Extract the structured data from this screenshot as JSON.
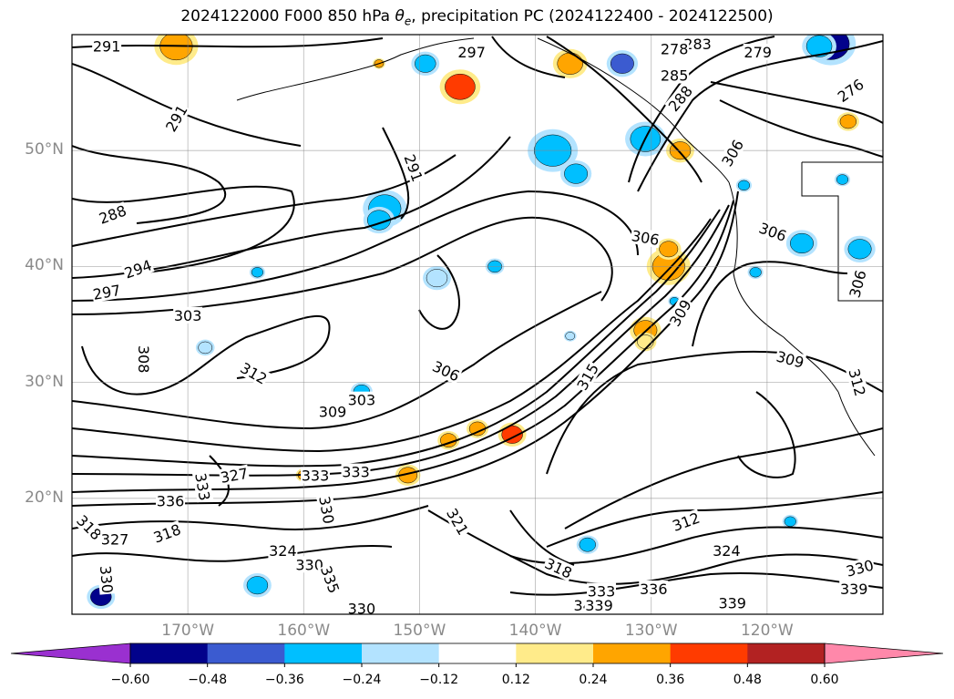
{
  "title": {
    "prefix": "2024122000 F000 850 hPa ",
    "symbol": "θ",
    "subscript": "e",
    "suffix": ", precipitation PC (2024122400 - 2024122500)"
  },
  "map": {
    "projection": "lat-lon",
    "lon_range": [
      -180,
      -110
    ],
    "lat_range": [
      10,
      60
    ],
    "lat_ticks": [
      {
        "value": 50,
        "label": "50°N"
      },
      {
        "value": 40,
        "label": "40°N"
      },
      {
        "value": 30,
        "label": "30°N"
      },
      {
        "value": 20,
        "label": "20°N"
      }
    ],
    "lon_ticks": [
      {
        "value": -170,
        "label": "170°W"
      },
      {
        "value": -160,
        "label": "160°W"
      },
      {
        "value": -150,
        "label": "150°W"
      },
      {
        "value": -140,
        "label": "140°W"
      },
      {
        "value": -130,
        "label": "130°W"
      },
      {
        "value": -120,
        "label": "120°W"
      }
    ],
    "gridlines": true,
    "contour_color": "#000000",
    "contour_labels": [
      {
        "text": "291",
        "lon": -177.0,
        "lat": 59.0,
        "angle": 0
      },
      {
        "text": "291",
        "lon": -171.0,
        "lat": 52.8,
        "angle": 60
      },
      {
        "text": "291",
        "lon": -150.5,
        "lat": 48.5,
        "angle": -70
      },
      {
        "text": "297",
        "lon": -145.5,
        "lat": 58.5,
        "angle": 0
      },
      {
        "text": "279",
        "lon": -120.8,
        "lat": 58.5,
        "angle": 0
      },
      {
        "text": "283",
        "lon": -126.0,
        "lat": 59.2,
        "angle": 0
      },
      {
        "text": "278",
        "lon": -128.0,
        "lat": 58.8,
        "angle": 0
      },
      {
        "text": "276",
        "lon": -112.8,
        "lat": 55.2,
        "angle": 35
      },
      {
        "text": "285",
        "lon": -128.0,
        "lat": 56.5,
        "angle": 0
      },
      {
        "text": "288",
        "lon": -127.5,
        "lat": 54.5,
        "angle": 50
      },
      {
        "text": "306",
        "lon": -123.0,
        "lat": 49.8,
        "angle": 60
      },
      {
        "text": "306",
        "lon": -119.5,
        "lat": 43.0,
        "angle": -20
      },
      {
        "text": "306",
        "lon": -112.2,
        "lat": 38.5,
        "angle": 75
      },
      {
        "text": "306",
        "lon": -130.5,
        "lat": 42.5,
        "angle": -10
      },
      {
        "text": "288",
        "lon": -176.5,
        "lat": 44.5,
        "angle": 20
      },
      {
        "text": "294",
        "lon": -174.3,
        "lat": 39.8,
        "angle": 20
      },
      {
        "text": "297",
        "lon": -177.0,
        "lat": 37.8,
        "angle": 10
      },
      {
        "text": "303",
        "lon": -170.0,
        "lat": 35.8,
        "angle": 0
      },
      {
        "text": "308",
        "lon": -173.8,
        "lat": 32.0,
        "angle": -90
      },
      {
        "text": "312",
        "lon": -164.3,
        "lat": 30.8,
        "angle": -30
      },
      {
        "text": "306",
        "lon": -147.7,
        "lat": 31.0,
        "angle": -25
      },
      {
        "text": "303",
        "lon": -155.0,
        "lat": 28.5,
        "angle": 0
      },
      {
        "text": "309",
        "lon": -157.5,
        "lat": 27.5,
        "angle": 0
      },
      {
        "text": "309",
        "lon": -118.0,
        "lat": 32.0,
        "angle": -15
      },
      {
        "text": "312",
        "lon": -112.2,
        "lat": 30.0,
        "angle": -75
      },
      {
        "text": "315",
        "lon": -135.5,
        "lat": 30.5,
        "angle": 60
      },
      {
        "text": "309",
        "lon": -127.5,
        "lat": 36.0,
        "angle": 60
      },
      {
        "text": "327",
        "lon": -166.0,
        "lat": 22.0,
        "angle": 10
      },
      {
        "text": "333",
        "lon": -168.7,
        "lat": 21.0,
        "angle": -80
      },
      {
        "text": "336",
        "lon": -171.5,
        "lat": 19.8,
        "angle": 0
      },
      {
        "text": "318",
        "lon": -178.5,
        "lat": 17.5,
        "angle": -45
      },
      {
        "text": "327",
        "lon": -176.3,
        "lat": 16.5,
        "angle": 0
      },
      {
        "text": "318",
        "lon": -171.8,
        "lat": 17.0,
        "angle": 20
      },
      {
        "text": "324",
        "lon": -161.8,
        "lat": 15.5,
        "angle": 0
      },
      {
        "text": "330",
        "lon": -159.5,
        "lat": 14.3,
        "angle": 0
      },
      {
        "text": "335",
        "lon": -157.7,
        "lat": 13.0,
        "angle": -70
      },
      {
        "text": "330",
        "lon": -177.0,
        "lat": 13.0,
        "angle": -85
      },
      {
        "text": "330",
        "lon": -158.0,
        "lat": 19.0,
        "angle": -80
      },
      {
        "text": "330",
        "lon": -155.0,
        "lat": 10.5,
        "angle": 0
      },
      {
        "text": "321",
        "lon": -146.7,
        "lat": 18.0,
        "angle": -60
      },
      {
        "text": "333",
        "lon": -155.5,
        "lat": 22.3,
        "angle": 0
      },
      {
        "text": "333",
        "lon": -159.0,
        "lat": 22.0,
        "angle": 0
      },
      {
        "text": "318",
        "lon": -138.0,
        "lat": 14.0,
        "angle": -25
      },
      {
        "text": "333",
        "lon": -134.3,
        "lat": 12.0,
        "angle": 0
      },
      {
        "text": "345",
        "lon": -135.5,
        "lat": 10.8,
        "angle": 0
      },
      {
        "text": "339",
        "lon": -134.5,
        "lat": 10.8,
        "angle": 0
      },
      {
        "text": "336",
        "lon": -129.8,
        "lat": 12.2,
        "angle": 0
      },
      {
        "text": "312",
        "lon": -127.0,
        "lat": 18.0,
        "angle": 20
      },
      {
        "text": "324",
        "lon": -123.5,
        "lat": 15.5,
        "angle": 0
      },
      {
        "text": "330",
        "lon": -112.0,
        "lat": 14.0,
        "angle": 15
      },
      {
        "text": "339",
        "lon": -112.5,
        "lat": 12.2,
        "angle": 0
      },
      {
        "text": "339",
        "lon": -123.0,
        "lat": 11.0,
        "angle": 0
      }
    ]
  },
  "colorbar": {
    "extend": "both",
    "levels": [
      -0.6,
      -0.48,
      -0.36,
      -0.24,
      -0.12,
      0.12,
      0.24,
      0.36,
      0.48,
      0.6
    ],
    "tick_labels": [
      "−0.60",
      "−0.48",
      "−0.36",
      "−0.24",
      "−0.12",
      "0.12",
      "0.24",
      "0.36",
      "0.48",
      "0.60"
    ],
    "colors": [
      "#9a30d0",
      "#02028b",
      "#3b5bd0",
      "#00bfff",
      "#b3e3ff",
      "#ffffff",
      "#ffeb8a",
      "#ffa500",
      "#ff3b00",
      "#b22222",
      "#ff88aa"
    ]
  },
  "precip_blobs": [
    {
      "lon": -171.0,
      "lat": 59.0,
      "r": 1.4,
      "level": 7
    },
    {
      "lon": -146.5,
      "lat": 55.5,
      "r": 1.3,
      "level": 8
    },
    {
      "lon": -149.5,
      "lat": 57.5,
      "r": 0.9,
      "level": 3
    },
    {
      "lon": -137.0,
      "lat": 57.5,
      "r": 1.1,
      "level": 7
    },
    {
      "lon": -132.5,
      "lat": 57.5,
      "r": 1.0,
      "level": 2
    },
    {
      "lon": -114.5,
      "lat": 59.2,
      "r": 1.6,
      "level": 1
    },
    {
      "lon": -115.5,
      "lat": 59.0,
      "r": 1.1,
      "level": 3
    },
    {
      "lon": -138.5,
      "lat": 50.0,
      "r": 1.6,
      "level": 3
    },
    {
      "lon": -136.5,
      "lat": 48.0,
      "r": 1.0,
      "level": 3
    },
    {
      "lon": -130.5,
      "lat": 51.0,
      "r": 1.3,
      "level": 3
    },
    {
      "lon": -127.5,
      "lat": 50.0,
      "r": 0.9,
      "level": 7
    },
    {
      "lon": -153.0,
      "lat": 45.0,
      "r": 1.4,
      "level": 3
    },
    {
      "lon": -153.5,
      "lat": 44.0,
      "r": 1.0,
      "level": 3
    },
    {
      "lon": -143.5,
      "lat": 40.0,
      "r": 0.6,
      "level": 3
    },
    {
      "lon": -148.5,
      "lat": 39.0,
      "r": 0.9,
      "level": 4
    },
    {
      "lon": -164.0,
      "lat": 39.5,
      "r": 0.5,
      "level": 3
    },
    {
      "lon": -128.5,
      "lat": 40.0,
      "r": 1.4,
      "level": 7
    },
    {
      "lon": -128.5,
      "lat": 41.5,
      "r": 0.8,
      "level": 7
    },
    {
      "lon": -130.5,
      "lat": 34.5,
      "r": 1.0,
      "level": 7
    },
    {
      "lon": -130.5,
      "lat": 33.5,
      "r": 0.7,
      "level": 6
    },
    {
      "lon": -117.0,
      "lat": 42.0,
      "r": 1.0,
      "level": 3
    },
    {
      "lon": -112.0,
      "lat": 41.5,
      "r": 1.0,
      "level": 3
    },
    {
      "lon": -142.0,
      "lat": 25.5,
      "r": 0.9,
      "level": 8
    },
    {
      "lon": -145.0,
      "lat": 26.0,
      "r": 0.7,
      "level": 7
    },
    {
      "lon": -147.5,
      "lat": 25.0,
      "r": 0.7,
      "level": 7
    },
    {
      "lon": -151.0,
      "lat": 22.0,
      "r": 0.8,
      "level": 7
    },
    {
      "lon": -155.0,
      "lat": 29.2,
      "r": 0.7,
      "level": 3
    },
    {
      "lon": -168.5,
      "lat": 33.0,
      "r": 0.6,
      "level": 4
    },
    {
      "lon": -164.5,
      "lat": 31.0,
      "r": 0.5,
      "level": 6
    },
    {
      "lon": -135.5,
      "lat": 16.0,
      "r": 0.7,
      "level": 3
    },
    {
      "lon": -177.5,
      "lat": 11.5,
      "r": 0.9,
      "level": 1
    },
    {
      "lon": -164.0,
      "lat": 12.5,
      "r": 0.9,
      "level": 3
    },
    {
      "lon": -128.0,
      "lat": 37.0,
      "r": 0.4,
      "level": 3
    },
    {
      "lon": -121.0,
      "lat": 39.5,
      "r": 0.5,
      "level": 3
    },
    {
      "lon": -113.5,
      "lat": 47.5,
      "r": 0.5,
      "level": 3
    },
    {
      "lon": -113.0,
      "lat": 52.5,
      "r": 0.7,
      "level": 7
    },
    {
      "lon": -122.0,
      "lat": 47.0,
      "r": 0.5,
      "level": 3
    },
    {
      "lon": -137.0,
      "lat": 34.0,
      "r": 0.4,
      "level": 4
    },
    {
      "lon": -153.5,
      "lat": 57.5,
      "r": 0.4,
      "level": 7
    },
    {
      "lon": -160.0,
      "lat": 22.0,
      "r": 0.5,
      "level": 7
    },
    {
      "lon": -118.0,
      "lat": 18.0,
      "r": 0.5,
      "level": 3
    }
  ]
}
